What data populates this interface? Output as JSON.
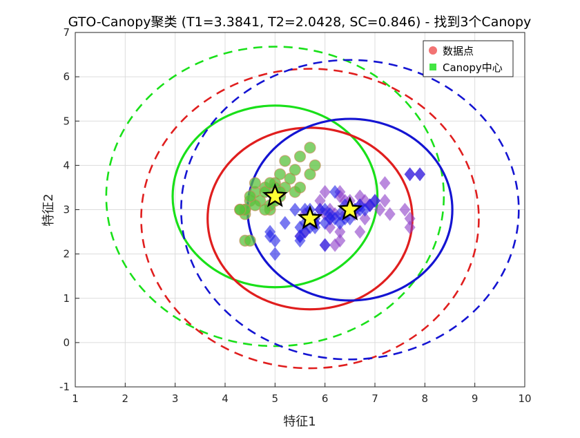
{
  "chart_data": {
    "type": "scatter",
    "title": "GTO-Canopy聚类 (T1=3.3841, T2=2.0428, SC=0.846) - 找到3个Canopy",
    "xlabel": "特征1",
    "ylabel": "特征2",
    "xlim": [
      1,
      10
    ],
    "ylim": [
      -1,
      7
    ],
    "xticks": [
      1,
      2,
      3,
      4,
      5,
      6,
      7,
      8,
      9,
      10
    ],
    "yticks": [
      -1,
      0,
      1,
      2,
      3,
      4,
      5,
      6,
      7
    ],
    "grid": true,
    "legend": {
      "placement": "top-right",
      "entries": [
        {
          "label": "数据点",
          "marker": "circle",
          "color": "#f05a5a"
        },
        {
          "label": "Canopy中心",
          "marker": "square",
          "color": "#22e022"
        }
      ]
    },
    "T1": 3.3841,
    "T2": 2.0428,
    "canopies": [
      {
        "id": "green",
        "color": "#19e019",
        "point_color": "#5ac23c",
        "center": [
          5.0,
          3.3
        ],
        "t2_radius": [
          2.05,
          2.05
        ],
        "t1_radius": [
          3.38,
          3.38
        ],
        "points": [
          [
            4.4,
            3.0
          ],
          [
            4.5,
            3.2
          ],
          [
            4.6,
            3.4
          ],
          [
            4.7,
            3.2
          ],
          [
            4.8,
            3.5
          ],
          [
            4.6,
            3.1
          ],
          [
            4.9,
            3.0
          ],
          [
            4.4,
            2.9
          ],
          [
            4.3,
            3.0
          ],
          [
            4.5,
            3.3
          ],
          [
            4.8,
            3.4
          ],
          [
            5.0,
            3.6
          ],
          [
            5.1,
            3.8
          ],
          [
            5.2,
            3.5
          ],
          [
            5.3,
            3.7
          ],
          [
            5.4,
            3.9
          ],
          [
            5.5,
            4.2
          ],
          [
            5.7,
            4.4
          ],
          [
            5.8,
            4.0
          ],
          [
            5.2,
            4.1
          ],
          [
            5.7,
            3.8
          ],
          [
            5.1,
            3.3
          ],
          [
            4.9,
            3.1
          ],
          [
            5.0,
            3.2
          ],
          [
            4.6,
            3.6
          ],
          [
            4.4,
            2.3
          ],
          [
            4.4,
            3.0
          ],
          [
            5.0,
            3.5
          ],
          [
            5.4,
            3.4
          ],
          [
            4.8,
            3.0
          ],
          [
            4.3,
            3.0
          ],
          [
            5.5,
            3.5
          ],
          [
            4.9,
            3.6
          ],
          [
            5.1,
            3.4
          ],
          [
            4.5,
            2.3
          ]
        ]
      },
      {
        "id": "red",
        "color": "#e01e1e",
        "point_color": "#8c3cc8",
        "center": [
          5.7,
          2.8
        ],
        "t2_radius": [
          2.05,
          2.05
        ],
        "t1_radius": [
          3.38,
          3.38
        ],
        "points": [
          [
            5.5,
            2.4
          ],
          [
            5.6,
            2.5
          ],
          [
            5.7,
            2.8
          ],
          [
            5.8,
            2.7
          ],
          [
            6.0,
            2.2
          ],
          [
            6.1,
            2.8
          ],
          [
            6.2,
            2.9
          ],
          [
            6.3,
            2.5
          ],
          [
            6.0,
            3.4
          ],
          [
            6.3,
            3.3
          ],
          [
            6.5,
            3.0
          ],
          [
            6.4,
            2.9
          ],
          [
            6.6,
            2.9
          ],
          [
            6.7,
            2.5
          ],
          [
            6.7,
            3.1
          ],
          [
            6.8,
            2.8
          ],
          [
            6.9,
            3.1
          ],
          [
            7.1,
            3.0
          ],
          [
            7.2,
            3.2
          ],
          [
            7.3,
            2.9
          ],
          [
            7.7,
            2.8
          ],
          [
            7.7,
            2.6
          ],
          [
            7.2,
            3.6
          ],
          [
            6.4,
            3.2
          ],
          [
            6.9,
            3.1
          ],
          [
            6.5,
            3.2
          ],
          [
            6.3,
            2.3
          ],
          [
            6.2,
            2.2
          ],
          [
            6.1,
            2.6
          ],
          [
            5.9,
            3.2
          ],
          [
            5.9,
            3.0
          ],
          [
            6.1,
            3.0
          ],
          [
            6.0,
            2.9
          ],
          [
            5.6,
            2.9
          ],
          [
            6.7,
            3.3
          ],
          [
            7.6,
            3.0
          ],
          [
            7.7,
            3.8
          ],
          [
            7.9,
            3.8
          ],
          [
            6.8,
            3.2
          ],
          [
            6.3,
            3.4
          ],
          [
            7.0,
            3.2
          ],
          [
            6.6,
            3.0
          ]
        ]
      },
      {
        "id": "blue",
        "color": "#1414d2",
        "point_color": "#2020e8",
        "center": [
          6.5,
          3.0
        ],
        "t2_radius": [
          2.05,
          2.05
        ],
        "t1_radius": [
          3.38,
          3.38
        ],
        "points": [
          [
            4.9,
            2.4
          ],
          [
            5.0,
            2.3
          ],
          [
            4.9,
            2.5
          ],
          [
            5.0,
            2.0
          ],
          [
            5.2,
            2.7
          ],
          [
            5.4,
            3.0
          ],
          [
            5.5,
            2.3
          ],
          [
            5.5,
            2.6
          ],
          [
            5.6,
            3.0
          ],
          [
            5.6,
            2.7
          ],
          [
            5.7,
            2.6
          ],
          [
            5.7,
            3.0
          ],
          [
            5.8,
            2.7
          ],
          [
            5.8,
            2.8
          ],
          [
            5.9,
            3.0
          ],
          [
            6.0,
            2.2
          ],
          [
            6.0,
            2.7
          ],
          [
            6.1,
            2.8
          ],
          [
            6.1,
            2.9
          ],
          [
            6.2,
            3.4
          ],
          [
            6.3,
            2.9
          ],
          [
            6.3,
            2.7
          ],
          [
            6.4,
            2.8
          ],
          [
            6.5,
            2.8
          ],
          [
            6.5,
            3.0
          ],
          [
            6.6,
            3.0
          ],
          [
            6.7,
            3.0
          ],
          [
            6.7,
            3.1
          ],
          [
            6.8,
            3.0
          ],
          [
            6.9,
            3.1
          ],
          [
            7.0,
            3.2
          ],
          [
            5.6,
            2.5
          ],
          [
            5.7,
            2.8
          ],
          [
            6.0,
            3.0
          ],
          [
            5.5,
            2.4
          ],
          [
            7.7,
            3.8
          ],
          [
            7.9,
            3.8
          ],
          [
            6.2,
            2.8
          ],
          [
            5.8,
            2.6
          ],
          [
            6.4,
            3.1
          ]
        ]
      }
    ]
  }
}
